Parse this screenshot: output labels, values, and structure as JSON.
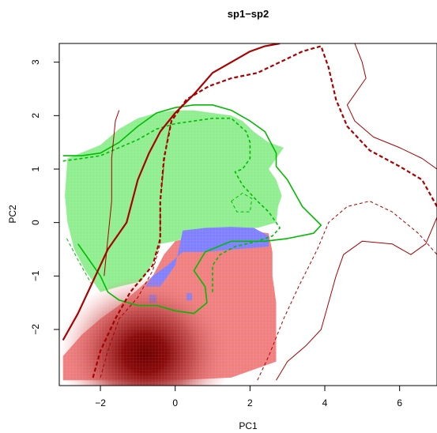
{
  "chart_data": {
    "type": "heatmap",
    "title": "sp1−sp2",
    "xlabel": "PC1",
    "ylabel": "PC2",
    "xlim": [
      -3.1,
      7.0
    ],
    "ylim": [
      -3.05,
      3.35
    ],
    "x_ticks": [
      -2,
      0,
      2,
      4,
      6
    ],
    "x_tick_labels": [
      "−2",
      "0",
      "2",
      "4",
      "6"
    ],
    "y_ticks": [
      -2,
      -1,
      0,
      1,
      2,
      3
    ],
    "y_tick_labels": [
      "−2",
      "−1",
      "0",
      "1",
      "2",
      "3"
    ],
    "grid": false,
    "colors": {
      "sp1_density": "#90ee90",
      "sp2_density": "#f08080",
      "overlap": "#8080ff",
      "sp2_density_peak": "#7a0000",
      "sp1_contour": "#00bb00",
      "sp2_contour": "#aa0000"
    },
    "series": [
      {
        "kind": "region",
        "polygon": [
          [
            -2.88,
            1.2
          ],
          [
            -2.0,
            1.45
          ],
          [
            -1.5,
            1.75
          ],
          [
            -1.0,
            1.95
          ],
          [
            -0.5,
            2.05
          ],
          [
            0.0,
            2.1
          ],
          [
            0.5,
            2.1
          ],
          [
            1.0,
            2.05
          ],
          [
            1.5,
            2.0
          ],
          [
            1.8,
            1.9
          ],
          [
            2.1,
            1.7
          ],
          [
            2.5,
            1.5
          ],
          [
            2.9,
            1.4
          ],
          [
            2.7,
            1.2
          ],
          [
            2.5,
            1.0
          ],
          [
            2.7,
            0.8
          ],
          [
            2.85,
            0.5
          ],
          [
            2.75,
            0.3
          ],
          [
            2.7,
            0.0
          ],
          [
            2.2,
            -0.1
          ],
          [
            1.6,
            -0.15
          ],
          [
            1.0,
            -0.15
          ],
          [
            0.4,
            -0.25
          ],
          [
            0.0,
            -0.35
          ],
          [
            -0.4,
            -0.4
          ],
          [
            -0.6,
            -0.75
          ],
          [
            -0.9,
            -1.1
          ],
          [
            -1.5,
            -1.2
          ],
          [
            -2.0,
            -1.3
          ],
          [
            -2.4,
            -0.9
          ],
          [
            -2.7,
            -0.5
          ],
          [
            -2.88,
            0.0
          ],
          [
            -2.95,
            0.5
          ]
        ]
      },
      {
        "kind": "region",
        "polygon": [
          [
            -0.6,
            -1.0
          ],
          [
            -0.3,
            -0.6
          ],
          [
            0.0,
            -0.35
          ],
          [
            0.5,
            -0.25
          ],
          [
            1.0,
            -0.2
          ],
          [
            1.5,
            -0.15
          ],
          [
            2.0,
            -0.15
          ],
          [
            2.5,
            -0.2
          ],
          [
            2.6,
            -0.55
          ],
          [
            2.6,
            -1.0
          ],
          [
            2.7,
            -1.5
          ],
          [
            2.7,
            -2.0
          ],
          [
            2.7,
            -2.6
          ],
          [
            1.5,
            -2.9
          ],
          [
            0.0,
            -2.95
          ],
          [
            -1.5,
            -2.95
          ],
          [
            -3.0,
            -2.95
          ],
          [
            -3.0,
            -2.5
          ],
          [
            -2.5,
            -2.1
          ],
          [
            -2.0,
            -1.8
          ],
          [
            -1.5,
            -1.55
          ],
          [
            -1.0,
            -1.25
          ]
        ]
      },
      {
        "kind": "region",
        "polygon": [
          [
            0.2,
            -0.15
          ],
          [
            0.8,
            -0.1
          ],
          [
            1.5,
            -0.08
          ],
          [
            2.1,
            -0.1
          ],
          [
            2.5,
            -0.25
          ],
          [
            2.5,
            -0.45
          ],
          [
            1.6,
            -0.5
          ],
          [
            0.8,
            -0.55
          ],
          [
            0.2,
            -0.55
          ],
          [
            -0.2,
            -0.8
          ],
          [
            -0.6,
            -1.0
          ],
          [
            -0.8,
            -1.2
          ],
          [
            -0.4,
            -1.2
          ],
          [
            0.0,
            -0.8
          ],
          [
            0.1,
            -0.5
          ]
        ]
      },
      {
        "kind": "region",
        "polygon": [
          [
            -0.7,
            -1.35
          ],
          [
            -0.5,
            -1.35
          ],
          [
            -0.5,
            -1.5
          ],
          [
            -0.7,
            -1.5
          ]
        ]
      },
      {
        "kind": "region",
        "polygon": [
          [
            0.3,
            -1.32
          ],
          [
            0.45,
            -1.32
          ],
          [
            0.45,
            -1.46
          ],
          [
            0.3,
            -1.46
          ]
        ]
      },
      {
        "kind": "hotspot",
        "center": [
          -0.8,
          -2.45
        ],
        "rx": 2.3,
        "ry": 1.45
      },
      {
        "kind": "contour",
        "dashed": false,
        "points": [
          [
            -3.0,
            1.25
          ],
          [
            -2.5,
            1.25
          ],
          [
            -2.0,
            1.3
          ],
          [
            -1.5,
            1.5
          ],
          [
            -1.0,
            1.8
          ],
          [
            -0.5,
            2.05
          ],
          [
            0.0,
            2.15
          ],
          [
            0.5,
            2.2
          ],
          [
            1.0,
            2.2
          ],
          [
            1.5,
            2.1
          ],
          [
            2.0,
            1.9
          ],
          [
            2.4,
            1.7
          ],
          [
            2.7,
            1.3
          ],
          [
            2.7,
            1.05
          ],
          [
            3.0,
            0.8
          ],
          [
            3.4,
            0.3
          ],
          [
            3.9,
            -0.05
          ],
          [
            3.7,
            -0.2
          ],
          [
            3.0,
            -0.3
          ],
          [
            2.4,
            -0.35
          ],
          [
            1.5,
            -0.35
          ],
          [
            0.8,
            -0.55
          ],
          [
            0.5,
            -0.9
          ],
          [
            0.8,
            -1.2
          ],
          [
            0.85,
            -1.5
          ],
          [
            0.5,
            -1.7
          ],
          [
            0.0,
            -1.65
          ],
          [
            -0.5,
            -1.55
          ],
          [
            -1.0,
            -1.55
          ],
          [
            -1.5,
            -1.45
          ],
          [
            -1.8,
            -1.3
          ],
          [
            -2.0,
            -1.0
          ],
          [
            -2.3,
            -0.7
          ],
          [
            -2.6,
            -0.4
          ]
        ]
      },
      {
        "kind": "contour",
        "dashed": true,
        "points": [
          [
            -3.0,
            1.15
          ],
          [
            -2.5,
            1.2
          ],
          [
            -2.0,
            1.25
          ],
          [
            -1.5,
            1.4
          ],
          [
            -1.0,
            1.55
          ],
          [
            -0.5,
            1.75
          ],
          [
            0.0,
            1.85
          ],
          [
            0.5,
            1.9
          ],
          [
            1.0,
            1.95
          ],
          [
            1.5,
            1.95
          ],
          [
            1.9,
            1.7
          ],
          [
            2.0,
            1.5
          ],
          [
            2.0,
            1.2
          ],
          [
            1.8,
            1.0
          ],
          [
            1.6,
            0.95
          ],
          [
            1.8,
            0.7
          ],
          [
            2.2,
            0.4
          ],
          [
            2.5,
            0.2
          ],
          [
            2.8,
            -0.1
          ],
          [
            2.6,
            -0.25
          ],
          [
            2.2,
            -0.35
          ],
          [
            1.6,
            -0.45
          ],
          [
            1.2,
            -0.6
          ],
          [
            1.0,
            -0.8
          ],
          [
            1.0,
            -1.1
          ],
          [
            1.0,
            -1.3
          ]
        ]
      },
      {
        "kind": "contour",
        "dashed": true,
        "closed": true,
        "points": [
          [
            1.5,
            0.4
          ],
          [
            1.8,
            0.55
          ],
          [
            2.05,
            0.45
          ],
          [
            2.0,
            0.2
          ],
          [
            1.65,
            0.2
          ]
        ]
      },
      {
        "kind": "contour",
        "dashed": true,
        "points": [
          [
            -2.9,
            -0.3
          ],
          [
            -2.6,
            -0.7
          ],
          [
            -2.2,
            -1.2
          ]
        ]
      },
      {
        "kind": "contour",
        "dashed": false,
        "points": [
          [
            -3.0,
            -2.2
          ],
          [
            -2.6,
            -1.7
          ],
          [
            -2.2,
            -1.1
          ],
          [
            -1.8,
            -0.5
          ],
          [
            -1.3,
            0.0
          ],
          [
            -1.0,
            0.8
          ],
          [
            -0.7,
            1.3
          ],
          [
            -0.4,
            1.7
          ],
          [
            0.0,
            2.05
          ],
          [
            0.5,
            2.4
          ],
          [
            1.0,
            2.8
          ],
          [
            1.5,
            3.0
          ],
          [
            2.0,
            3.2
          ],
          [
            2.4,
            3.3
          ],
          [
            2.8,
            3.35
          ]
        ]
      },
      {
        "kind": "contour",
        "dashed": true,
        "points": [
          [
            -2.2,
            -2.9
          ],
          [
            -2.0,
            -2.4
          ],
          [
            -1.6,
            -1.8
          ],
          [
            -1.2,
            -1.3
          ],
          [
            -0.6,
            -0.8
          ],
          [
            -0.4,
            -0.3
          ],
          [
            -0.4,
            0.4
          ],
          [
            -0.3,
            1.2
          ],
          [
            -0.1,
            1.9
          ],
          [
            0.3,
            2.3
          ],
          [
            0.9,
            2.55
          ],
          [
            1.5,
            2.7
          ],
          [
            2.2,
            2.8
          ],
          [
            2.8,
            3.0
          ],
          [
            3.4,
            3.2
          ],
          [
            3.9,
            3.3
          ],
          [
            4.1,
            2.9
          ],
          [
            4.3,
            2.3
          ],
          [
            4.6,
            1.8
          ],
          [
            5.2,
            1.35
          ],
          [
            6.0,
            1.05
          ],
          [
            6.6,
            0.8
          ],
          [
            7.0,
            0.3
          ]
        ]
      },
      {
        "kind": "contour",
        "dashed": false,
        "points": [
          [
            -1.9,
            -1.0
          ],
          [
            -1.8,
            -0.3
          ],
          [
            -1.7,
            0.4
          ],
          [
            -1.7,
            1.2
          ],
          [
            -1.6,
            1.9
          ],
          [
            -1.5,
            2.1
          ]
        ]
      },
      {
        "kind": "contour",
        "dashed": true,
        "points": [
          [
            -2.0,
            -2.9
          ],
          [
            -1.8,
            -2.4
          ],
          [
            -1.5,
            -1.8
          ],
          [
            -1.0,
            -1.4
          ],
          [
            -0.6,
            -0.9
          ],
          [
            -0.4,
            -0.4
          ],
          [
            -0.4,
            0.4
          ],
          [
            -0.3,
            1.1
          ],
          [
            -0.2,
            1.6
          ],
          [
            -0.1,
            1.9
          ]
        ]
      },
      {
        "kind": "contour",
        "dashed": false,
        "points": [
          [
            2.7,
            -2.95
          ],
          [
            3.0,
            -2.6
          ],
          [
            3.5,
            -2.3
          ],
          [
            3.9,
            -2.0
          ],
          [
            4.1,
            -1.5
          ],
          [
            4.3,
            -1.0
          ],
          [
            4.5,
            -0.6
          ],
          [
            5.0,
            -0.35
          ],
          [
            5.8,
            -0.4
          ],
          [
            6.3,
            -0.6
          ],
          [
            6.7,
            -0.4
          ],
          [
            7.0,
            0.1
          ]
        ]
      },
      {
        "kind": "contour",
        "dashed": false,
        "points": [
          [
            4.8,
            3.35
          ],
          [
            5.0,
            3.0
          ],
          [
            5.1,
            2.7
          ],
          [
            4.9,
            2.5
          ],
          [
            4.6,
            2.2
          ],
          [
            4.8,
            1.9
          ],
          [
            5.3,
            1.6
          ],
          [
            6.0,
            1.4
          ],
          [
            6.6,
            1.2
          ],
          [
            7.0,
            1.0
          ]
        ]
      },
      {
        "kind": "contour",
        "dashed": true,
        "points": [
          [
            2.2,
            -2.95
          ],
          [
            2.5,
            -2.5
          ],
          [
            2.9,
            -1.8
          ],
          [
            3.3,
            -1.2
          ],
          [
            3.8,
            -0.5
          ],
          [
            4.1,
            0.0
          ],
          [
            4.6,
            0.3
          ],
          [
            5.2,
            0.4
          ],
          [
            5.8,
            0.2
          ],
          [
            6.5,
            -0.2
          ],
          [
            7.0,
            -0.6
          ]
        ]
      }
    ]
  }
}
